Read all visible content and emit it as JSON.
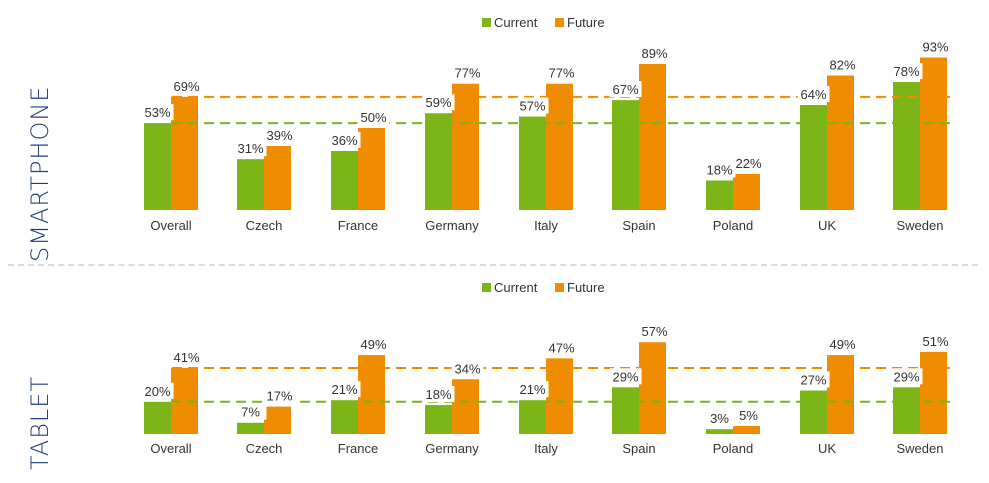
{
  "panels": [
    {
      "label": "SMARTPHONE",
      "avg_current": 53,
      "avg_future": 69
    },
    {
      "label": "TABLET",
      "avg_current": 20,
      "avg_future": 41
    }
  ],
  "colors": {
    "current": "#7cb518",
    "future": "#f08c00",
    "text": "#333333",
    "side_label": "#1f3d7a"
  },
  "chart_data": [
    {
      "type": "bar",
      "title": "SMARTPHONE",
      "categories": [
        "Overall",
        "Czech",
        "France",
        "Germany",
        "Italy",
        "Spain",
        "Poland",
        "UK",
        "Sweden"
      ],
      "series": [
        {
          "name": "Current",
          "values": [
            53,
            31,
            36,
            59,
            57,
            67,
            18,
            64,
            78
          ],
          "labels": [
            "53%",
            "31%",
            "36%",
            "59%",
            "57%",
            "67%",
            "18%",
            "64%",
            "78%"
          ]
        },
        {
          "name": "Future",
          "values": [
            69,
            39,
            50,
            77,
            77,
            89,
            22,
            82,
            93
          ],
          "labels": [
            "69%",
            "39%",
            "50%",
            "77%",
            "77%",
            "89%",
            "22%",
            "82%",
            "93%"
          ]
        }
      ],
      "reference_lines": [
        53,
        69
      ],
      "ylim": [
        0,
        100
      ],
      "legend": "top-center"
    },
    {
      "type": "bar",
      "title": "TABLET",
      "categories": [
        "Overall",
        "Czech",
        "France",
        "Germany",
        "Italy",
        "Spain",
        "Poland",
        "UK",
        "Sweden"
      ],
      "series": [
        {
          "name": "Current",
          "values": [
            20,
            7,
            21,
            18,
            21,
            29,
            3,
            27,
            29
          ],
          "labels": [
            "20%",
            "7%",
            "21%",
            "18%",
            "21%",
            "29%",
            "3%",
            "27%",
            "29%"
          ]
        },
        {
          "name": "Future",
          "values": [
            41,
            17,
            49,
            34,
            47,
            57,
            5,
            49,
            51
          ],
          "labels": [
            "41%",
            "17%",
            "49%",
            "34%",
            "47%",
            "57%",
            "5%",
            "49%",
            "51%"
          ]
        }
      ],
      "reference_lines": [
        20,
        41
      ],
      "ylim": [
        0,
        60
      ],
      "legend": "top-center"
    }
  ]
}
